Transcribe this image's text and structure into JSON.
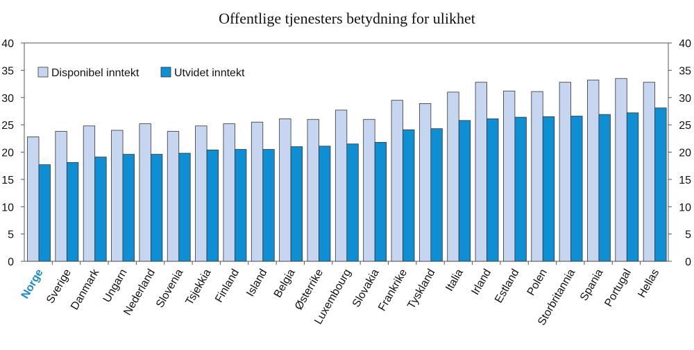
{
  "chart_data": {
    "type": "bar",
    "title": "Offentlige tjenesters betydning for ulikhet",
    "xlabel": "",
    "ylabel": "",
    "ylim": [
      0,
      40
    ],
    "yticks": [
      0,
      5,
      10,
      15,
      20,
      25,
      30,
      35,
      40
    ],
    "grid": false,
    "legend_position": "top-left",
    "highlight_category": "Norge",
    "categories": [
      "Norge",
      "Sverige",
      "Danmark",
      "Ungarn",
      "Nederland",
      "Slovenia",
      "Tsjekkia",
      "Finland",
      "Island",
      "Belgia",
      "Østerrike",
      "Luxembourg",
      "Slovakia",
      "Frankrike",
      "Tyskland",
      "Italia",
      "Irland",
      "Estland",
      "Polen",
      "Storbritannia",
      "Spania",
      "Portugal",
      "Hellas"
    ],
    "series": [
      {
        "name": "Disponibel inntekt",
        "color": "#c6d6f0",
        "values": [
          22.8,
          23.8,
          24.8,
          24.0,
          25.2,
          23.8,
          24.8,
          25.2,
          25.5,
          26.1,
          26.0,
          27.7,
          26.0,
          29.5,
          28.9,
          31.0,
          32.8,
          31.2,
          31.1,
          32.8,
          33.2,
          33.5,
          32.8
        ]
      },
      {
        "name": "Utvidet inntekt",
        "color": "#0e8fd3",
        "values": [
          17.7,
          18.1,
          19.1,
          19.6,
          19.6,
          19.8,
          20.4,
          20.5,
          20.5,
          21.0,
          21.1,
          21.5,
          21.8,
          24.1,
          24.3,
          25.8,
          26.1,
          26.4,
          26.5,
          26.6,
          26.9,
          27.2,
          28.1
        ]
      }
    ]
  }
}
